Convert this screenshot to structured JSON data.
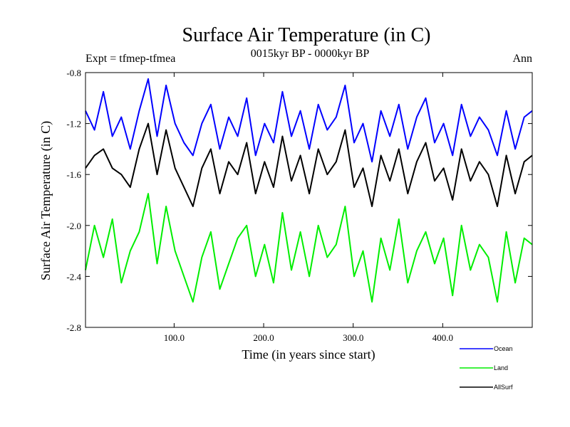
{
  "chart_data": {
    "type": "line",
    "title": "Surface Air Temperature (in C)",
    "subtitle": "0015kyr BP - 0000kyr BP",
    "left_label": "Expt = tfmep-tfmea",
    "right_label": "Ann",
    "xlabel": "Time (in years since start)",
    "ylabel": "Surface Air Temperature (in C)",
    "xlim": [
      1,
      500
    ],
    "ylim": [
      -2.8,
      -0.8
    ],
    "xticks": [
      100,
      200,
      300,
      400
    ],
    "xtick_labels": [
      "100.0",
      "200.0",
      "300.0",
      "400.0"
    ],
    "yticks": [
      -2.8,
      -2.4,
      -2.0,
      -1.6,
      -1.2,
      -0.8
    ],
    "ytick_labels": [
      "-2.8",
      "-2.4",
      "-2.0",
      "-1.6",
      "-1.2",
      "-0.8"
    ],
    "grid": false,
    "legend_position": "bottom-right",
    "series": [
      {
        "name": "Ocean",
        "color": "#0000ff",
        "x": [
          1,
          11,
          21,
          31,
          41,
          51,
          61,
          71,
          81,
          91,
          101,
          111,
          121,
          131,
          141,
          151,
          161,
          171,
          181,
          191,
          201,
          211,
          221,
          231,
          241,
          251,
          261,
          271,
          281,
          291,
          301,
          311,
          321,
          331,
          341,
          351,
          361,
          371,
          381,
          391,
          401,
          411,
          421,
          431,
          441,
          451,
          461,
          471,
          481,
          491,
          500
        ],
        "values": [
          -1.1,
          -1.25,
          -0.95,
          -1.3,
          -1.15,
          -1.4,
          -1.1,
          -0.85,
          -1.3,
          -0.9,
          -1.2,
          -1.35,
          -1.45,
          -1.2,
          -1.05,
          -1.4,
          -1.15,
          -1.3,
          -1.0,
          -1.45,
          -1.2,
          -1.35,
          -0.95,
          -1.3,
          -1.1,
          -1.4,
          -1.05,
          -1.25,
          -1.15,
          -0.9,
          -1.35,
          -1.2,
          -1.5,
          -1.1,
          -1.3,
          -1.05,
          -1.4,
          -1.15,
          -1.0,
          -1.35,
          -1.2,
          -1.45,
          -1.05,
          -1.3,
          -1.15,
          -1.25,
          -1.45,
          -1.1,
          -1.4,
          -1.15,
          -1.1
        ]
      },
      {
        "name": "Land",
        "color": "#00ee00",
        "x": [
          1,
          11,
          21,
          31,
          41,
          51,
          61,
          71,
          81,
          91,
          101,
          111,
          121,
          131,
          141,
          151,
          161,
          171,
          181,
          191,
          201,
          211,
          221,
          231,
          241,
          251,
          261,
          271,
          281,
          291,
          301,
          311,
          321,
          331,
          341,
          351,
          361,
          371,
          381,
          391,
          401,
          411,
          421,
          431,
          441,
          451,
          461,
          471,
          481,
          491,
          500
        ],
        "values": [
          -2.35,
          -2.0,
          -2.25,
          -1.95,
          -2.45,
          -2.2,
          -2.05,
          -1.75,
          -2.3,
          -1.85,
          -2.2,
          -2.4,
          -2.6,
          -2.25,
          -2.05,
          -2.5,
          -2.3,
          -2.1,
          -2.0,
          -2.4,
          -2.15,
          -2.45,
          -1.9,
          -2.35,
          -2.05,
          -2.4,
          -2.0,
          -2.25,
          -2.15,
          -1.85,
          -2.4,
          -2.2,
          -2.6,
          -2.1,
          -2.35,
          -1.95,
          -2.45,
          -2.2,
          -2.05,
          -2.3,
          -2.1,
          -2.55,
          -2.0,
          -2.35,
          -2.15,
          -2.25,
          -2.6,
          -2.05,
          -2.45,
          -2.1,
          -2.15
        ]
      },
      {
        "name": "AllSurf",
        "color": "#000000",
        "x": [
          1,
          11,
          21,
          31,
          41,
          51,
          61,
          71,
          81,
          91,
          101,
          111,
          121,
          131,
          141,
          151,
          161,
          171,
          181,
          191,
          201,
          211,
          221,
          231,
          241,
          251,
          261,
          271,
          281,
          291,
          301,
          311,
          321,
          331,
          341,
          351,
          361,
          371,
          381,
          391,
          401,
          411,
          421,
          431,
          441,
          451,
          461,
          471,
          481,
          491,
          500
        ],
        "values": [
          -1.55,
          -1.45,
          -1.4,
          -1.55,
          -1.6,
          -1.7,
          -1.4,
          -1.2,
          -1.6,
          -1.25,
          -1.55,
          -1.7,
          -1.85,
          -1.55,
          -1.4,
          -1.75,
          -1.5,
          -1.6,
          -1.35,
          -1.75,
          -1.5,
          -1.7,
          -1.3,
          -1.65,
          -1.45,
          -1.75,
          -1.4,
          -1.6,
          -1.5,
          -1.25,
          -1.7,
          -1.55,
          -1.85,
          -1.45,
          -1.65,
          -1.4,
          -1.75,
          -1.5,
          -1.35,
          -1.65,
          -1.55,
          -1.8,
          -1.4,
          -1.65,
          -1.5,
          -1.6,
          -1.85,
          -1.45,
          -1.75,
          -1.5,
          -1.45
        ]
      }
    ]
  }
}
